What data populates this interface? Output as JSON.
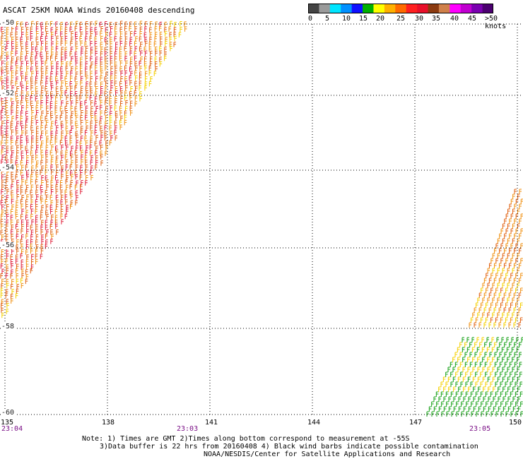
{
  "title": "ASCAT 25KM NOAA Winds 20160408 descending",
  "colorbar": {
    "labels": [
      "0",
      "5",
      "10",
      "15",
      "20",
      "25",
      "30",
      "35",
      "40",
      "45",
      ">50 knots"
    ],
    "colors": [
      "#444444",
      "#9a9a9a",
      "#00e5ff",
      "#0090ff",
      "#1010ff",
      "#00b000",
      "#ffff00",
      "#ffb000",
      "#ff6a00",
      "#ff2020",
      "#e8102a",
      "#8b3a10",
      "#d0804a",
      "#ff00ff",
      "#c000d0",
      "#7a00b0",
      "#4b0070"
    ]
  },
  "map": {
    "lat_labels": [
      "-50",
      "-52",
      "-54",
      "-56",
      "-58",
      "-60"
    ],
    "lon_labels": [
      "135",
      "138",
      "141",
      "144",
      "147",
      "150"
    ],
    "swath_times": [
      "23:04",
      "23:03",
      "23:05"
    ],
    "barb_colors": {
      "red": "#e0203a",
      "orange": "#e06010",
      "amber": "#f09010",
      "yellow": "#f4d000",
      "green": "#16a016"
    }
  },
  "notes": {
    "line1": "Note: 1) Times are GMT 2)Times along bottom correspond to measurement at -55S",
    "line2": "3)Data buffer is 22 hrs from 20160408 4) Black wind barbs indicate possible contamination",
    "line3": "NOAA/NESDIS/Center for Satellite Applications and Research"
  }
}
